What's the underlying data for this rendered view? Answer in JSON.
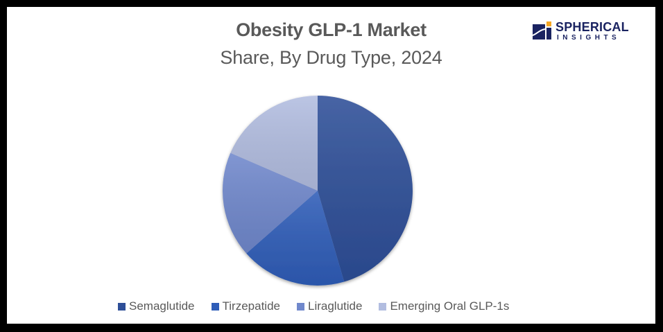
{
  "header": {
    "title": "Obesity GLP-1 Market",
    "subtitle": "Share, By Drug Type, 2024"
  },
  "logo": {
    "name": "SPHERICAL",
    "tagline": "INSIGHTS",
    "primary_color": "#1a2361",
    "accent_color": "#f5a623"
  },
  "chart_data": {
    "type": "pie",
    "title": "Obesity GLP-1 Market",
    "subtitle": "Share, By Drug Type, 2024",
    "categories": [
      "Semaglutide",
      "Tirzepatide",
      "Liraglutide",
      "Emerging Oral GLP-1s"
    ],
    "values": [
      45.5,
      18,
      18,
      18.5
    ],
    "unit": "%",
    "colors": [
      "#2e4f98",
      "#2f5db8",
      "#7088cc",
      "#b2bde0"
    ],
    "start_angle_deg": 0,
    "direction": "clockwise",
    "legend_position": "bottom",
    "data_labels": false
  },
  "legend": {
    "items": [
      {
        "label": "Semaglutide",
        "color": "#2e4f98"
      },
      {
        "label": "Tirzepatide",
        "color": "#2f5db8"
      },
      {
        "label": "Liraglutide",
        "color": "#7088cc"
      },
      {
        "label": "Emerging Oral GLP-1s",
        "color": "#b2bde0"
      }
    ]
  }
}
